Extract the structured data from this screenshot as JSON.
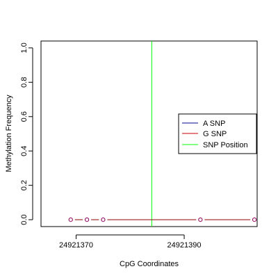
{
  "chart_data": {
    "type": "line",
    "title": "",
    "xlabel": "CpG Coordinates",
    "ylabel": "Methylation Frequency",
    "xlim": [
      24921363.5,
      24921403.5
    ],
    "ylim": [
      -0.04,
      1.04
    ],
    "xticks": [
      24921370,
      24921390
    ],
    "xtick_labels": [
      "24921370",
      "24921390"
    ],
    "yticks": [
      0.0,
      0.2,
      0.4,
      0.6,
      0.8,
      1.0
    ],
    "ytick_labels": [
      "0.0",
      "0.2",
      "0.4",
      "0.6",
      "0.8",
      "1.0"
    ],
    "grid": false,
    "legend_position": "right",
    "legend": [
      {
        "label": "A SNP",
        "color": "#00008B"
      },
      {
        "label": "G SNP",
        "color": "#CD0000"
      },
      {
        "label": "SNP Position",
        "color": "#00FF00"
      }
    ],
    "series": [
      {
        "x": [
          24921369,
          24921372,
          24921375,
          24921393,
          24921403
        ],
        "y": [
          0,
          0,
          0,
          0,
          0
        ],
        "line_color": "#8B0000",
        "point_color": "#8B0057"
      }
    ],
    "snp_position": 24921384
  }
}
